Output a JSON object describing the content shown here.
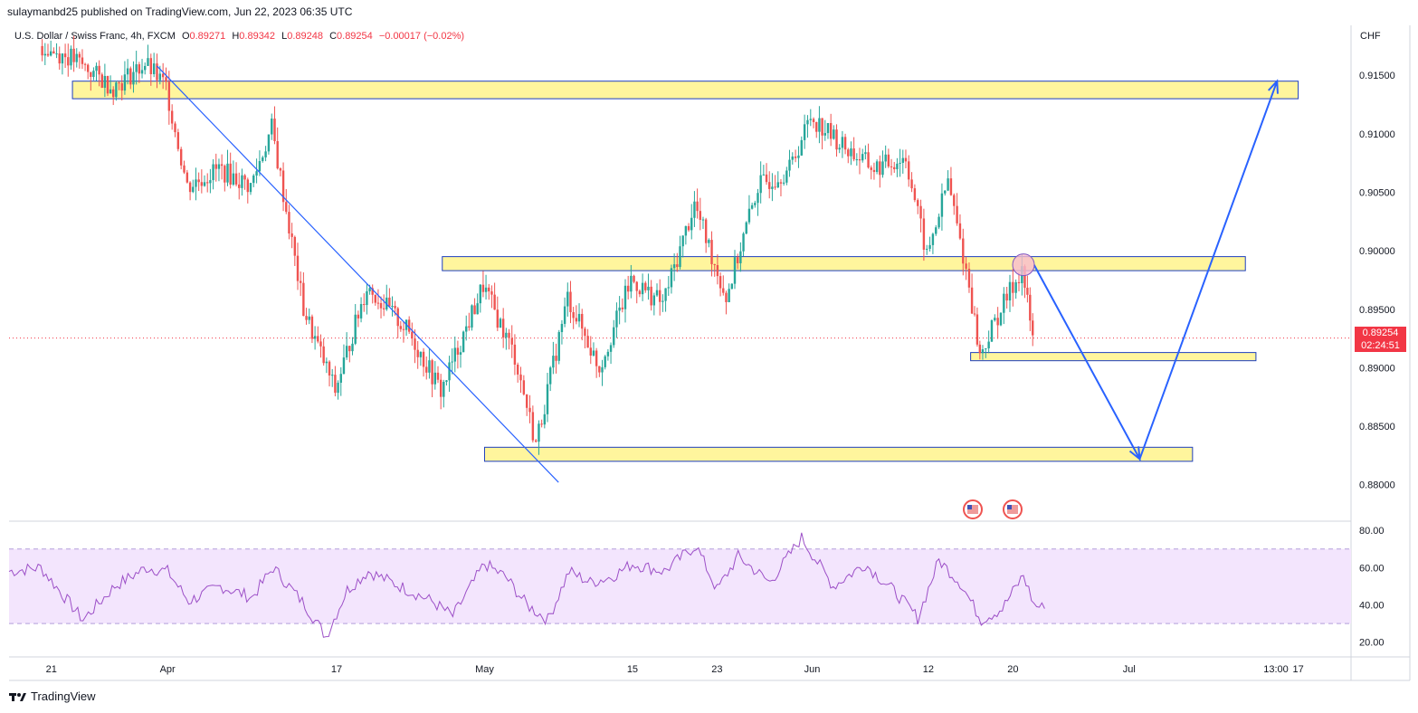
{
  "header": {
    "publisher_line": "sulaymanbd25 published on TradingView.com, Jun 22, 2023 06:35 UTC"
  },
  "legend": {
    "symbol": "U.S. Dollar / Swiss Franc, 4h, FXCM",
    "open_label": "O",
    "open": "0.89271",
    "high_label": "H",
    "high": "0.89342",
    "low_label": "L",
    "low": "0.89248",
    "close_label": "C",
    "close": "0.89254",
    "change": "−0.00017 (−0.02%)"
  },
  "price_axis": {
    "currency": "CHF",
    "ticks": [
      "0.91500",
      "0.91000",
      "0.90500",
      "0.90000",
      "0.89500",
      "0.89000",
      "0.88500",
      "0.88000"
    ]
  },
  "last_price": {
    "value": "0.89254",
    "countdown": "02:24:51"
  },
  "rsi_axis": {
    "ticks": [
      "80.00",
      "60.00",
      "40.00",
      "20.00"
    ]
  },
  "time_axis": {
    "ticks": [
      "21",
      "Apr",
      "17",
      "May",
      "15",
      "23",
      "Jun",
      "12",
      "20",
      "Jul",
      "17",
      "13:00"
    ]
  },
  "footer": {
    "brand": "TradingView"
  },
  "colors": {
    "up": "#26a69a",
    "down": "#ef5350",
    "zone_fill": "#fff59d",
    "zone_border": "#1e3fbf",
    "projection": "#2962ff",
    "rsi": "#9c4fc7",
    "rsi_band": "#f3e5fd"
  },
  "chart_data": {
    "type": "candlestick",
    "symbol": "USD/CHF",
    "timeframe": "4h",
    "ylim": [
      0.8775,
      0.9185
    ],
    "x_range": [
      "2023-03-17",
      "2023-07-22"
    ],
    "zones": [
      {
        "from": 0.913,
        "to": 0.9145,
        "start": "2023-03-23",
        "end": "2023-07-17"
      },
      {
        "from": 0.8983,
        "to": 0.8995,
        "start": "2023-04-27",
        "end": "2023-07-12"
      },
      {
        "from": 0.8906,
        "to": 0.8913,
        "start": "2023-06-16",
        "end": "2023-07-13"
      },
      {
        "from": 0.882,
        "to": 0.8832,
        "start": "2023-05-01",
        "end": "2023-07-07"
      }
    ],
    "trendline": [
      {
        "x": "2023-03-31",
        "y": 0.9158
      },
      {
        "x": "2023-05-08",
        "y": 0.8802
      }
    ],
    "projection_path": [
      {
        "x": "2023-06-22",
        "y": 0.8988
      },
      {
        "x": "2023-07-02",
        "y": 0.8822
      },
      {
        "x": "2023-07-15",
        "y": 0.9145
      }
    ],
    "price_points": [
      {
        "x": "2023-03-20",
        "y": 0.9175
      },
      {
        "x": "2023-03-23",
        "y": 0.9165
      },
      {
        "x": "2023-03-27",
        "y": 0.914
      },
      {
        "x": "2023-03-30",
        "y": 0.916
      },
      {
        "x": "2023-04-01",
        "y": 0.914
      },
      {
        "x": "2023-04-03",
        "y": 0.9055
      },
      {
        "x": "2023-04-06",
        "y": 0.907
      },
      {
        "x": "2023-04-09",
        "y": 0.9055
      },
      {
        "x": "2023-04-11",
        "y": 0.9105
      },
      {
        "x": "2023-04-14",
        "y": 0.895
      },
      {
        "x": "2023-04-17",
        "y": 0.888
      },
      {
        "x": "2023-04-20",
        "y": 0.897
      },
      {
        "x": "2023-04-24",
        "y": 0.893
      },
      {
        "x": "2023-04-27",
        "y": 0.888
      },
      {
        "x": "2023-05-01",
        "y": 0.897
      },
      {
        "x": "2023-05-04",
        "y": 0.891
      },
      {
        "x": "2023-05-06",
        "y": 0.8835
      },
      {
        "x": "2023-05-09",
        "y": 0.896
      },
      {
        "x": "2023-05-12",
        "y": 0.89
      },
      {
        "x": "2023-05-15",
        "y": 0.8975
      },
      {
        "x": "2023-05-18",
        "y": 0.8955
      },
      {
        "x": "2023-05-21",
        "y": 0.904
      },
      {
        "x": "2023-05-24",
        "y": 0.896
      },
      {
        "x": "2023-05-27",
        "y": 0.9055
      },
      {
        "x": "2023-05-30",
        "y": 0.907
      },
      {
        "x": "2023-06-01",
        "y": 0.9115
      },
      {
        "x": "2023-06-04",
        "y": 0.909
      },
      {
        "x": "2023-06-07",
        "y": 0.907
      },
      {
        "x": "2023-06-10",
        "y": 0.908
      },
      {
        "x": "2023-06-12",
        "y": 0.8995
      },
      {
        "x": "2023-06-14",
        "y": 0.906
      },
      {
        "x": "2023-06-16",
        "y": 0.897
      },
      {
        "x": "2023-06-17",
        "y": 0.891
      },
      {
        "x": "2023-06-19",
        "y": 0.895
      },
      {
        "x": "2023-06-21",
        "y": 0.8985
      },
      {
        "x": "2023-06-22",
        "y": 0.8925
      }
    ],
    "rsi": {
      "levels": [
        70,
        30
      ],
      "ylim": [
        15,
        82
      ],
      "points": [
        {
          "x": "2023-03-17",
          "y": 58
        },
        {
          "x": "2023-03-20",
          "y": 60
        },
        {
          "x": "2023-03-22",
          "y": 46
        },
        {
          "x": "2023-03-24",
          "y": 32
        },
        {
          "x": "2023-03-27",
          "y": 50
        },
        {
          "x": "2023-03-30",
          "y": 60
        },
        {
          "x": "2023-04-01",
          "y": 58
        },
        {
          "x": "2023-04-03",
          "y": 42
        },
        {
          "x": "2023-04-06",
          "y": 50
        },
        {
          "x": "2023-04-09",
          "y": 44
        },
        {
          "x": "2023-04-11",
          "y": 60
        },
        {
          "x": "2023-04-14",
          "y": 40
        },
        {
          "x": "2023-04-16",
          "y": 23
        },
        {
          "x": "2023-04-18",
          "y": 48
        },
        {
          "x": "2023-04-20",
          "y": 58
        },
        {
          "x": "2023-04-23",
          "y": 50
        },
        {
          "x": "2023-04-26",
          "y": 42
        },
        {
          "x": "2023-04-28",
          "y": 34
        },
        {
          "x": "2023-05-01",
          "y": 62
        },
        {
          "x": "2023-05-03",
          "y": 55
        },
        {
          "x": "2023-05-05",
          "y": 40
        },
        {
          "x": "2023-05-07",
          "y": 32
        },
        {
          "x": "2023-05-09",
          "y": 58
        },
        {
          "x": "2023-05-11",
          "y": 52
        },
        {
          "x": "2023-05-13",
          "y": 55
        },
        {
          "x": "2023-05-15",
          "y": 62
        },
        {
          "x": "2023-05-18",
          "y": 58
        },
        {
          "x": "2023-05-21",
          "y": 72
        },
        {
          "x": "2023-05-23",
          "y": 48
        },
        {
          "x": "2023-05-25",
          "y": 66
        },
        {
          "x": "2023-05-28",
          "y": 52
        },
        {
          "x": "2023-05-31",
          "y": 76
        },
        {
          "x": "2023-06-03",
          "y": 50
        },
        {
          "x": "2023-06-06",
          "y": 62
        },
        {
          "x": "2023-06-09",
          "y": 46
        },
        {
          "x": "2023-06-11",
          "y": 33
        },
        {
          "x": "2023-06-13",
          "y": 64
        },
        {
          "x": "2023-06-15",
          "y": 52
        },
        {
          "x": "2023-06-17",
          "y": 32
        },
        {
          "x": "2023-06-19",
          "y": 38
        },
        {
          "x": "2023-06-21",
          "y": 56
        },
        {
          "x": "2023-06-22",
          "y": 40
        },
        {
          "x": "2023-06-23",
          "y": 38
        }
      ]
    }
  }
}
